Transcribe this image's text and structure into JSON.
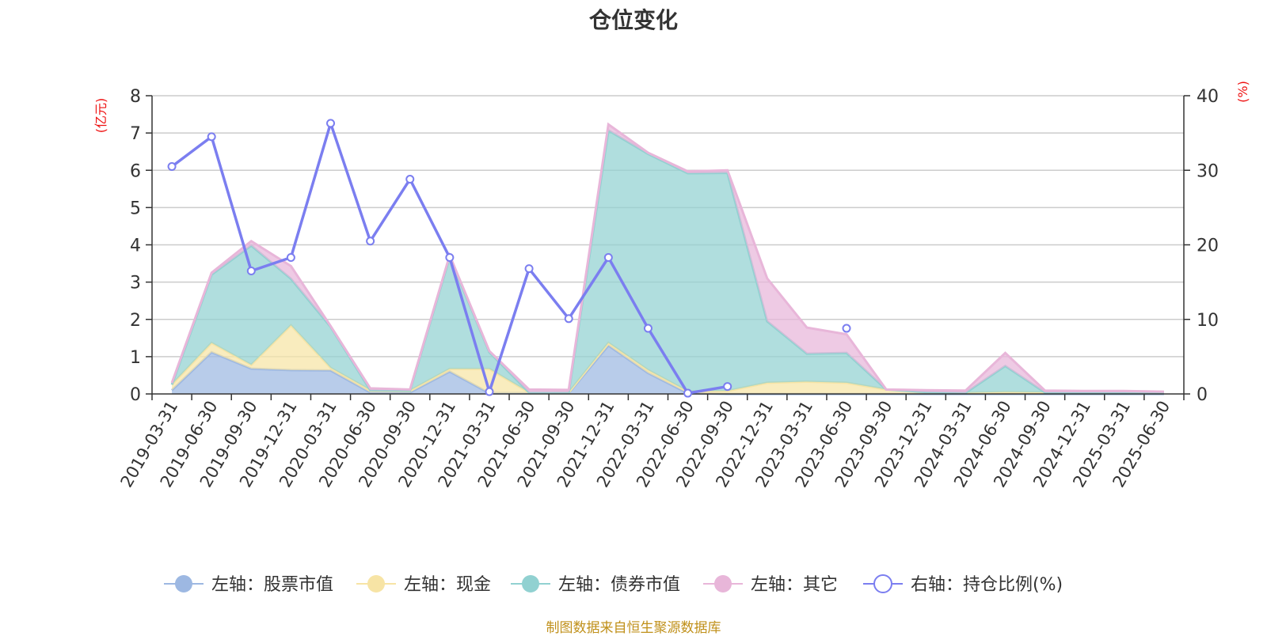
{
  "chart_data": {
    "type": "area",
    "title": "仓位变化",
    "left_axis_unit": "(亿元)",
    "right_axis_unit": "(%)",
    "categories": [
      "2019-03-31",
      "2019-06-30",
      "2019-09-30",
      "2019-12-31",
      "2020-03-31",
      "2020-06-30",
      "2020-09-30",
      "2020-12-31",
      "2021-03-31",
      "2021-06-30",
      "2021-09-30",
      "2021-12-31",
      "2022-03-31",
      "2022-06-30",
      "2022-09-30",
      "2022-12-31",
      "2023-03-31",
      "2023-06-30",
      "2023-09-30",
      "2023-12-31",
      "2024-03-31",
      "2024-06-30",
      "2024-09-30",
      "2024-12-31",
      "2025-03-31",
      "2025-06-30"
    ],
    "ylim_left": [
      0,
      8
    ],
    "yticks_left": [
      0,
      1,
      2,
      3,
      4,
      5,
      6,
      7,
      8
    ],
    "ylim_right": [
      0,
      40
    ],
    "yticks_right": [
      0,
      10,
      20,
      30,
      40
    ],
    "grid": true,
    "legend_position": "bottom",
    "series": [
      {
        "name": "左轴：股票市值",
        "axis": "left",
        "kind": "area",
        "color": "#9db8e2",
        "values": [
          0.1,
          1.12,
          0.68,
          0.64,
          0.63,
          0.04,
          0.04,
          0.6,
          0.02,
          0.02,
          0.02,
          1.3,
          0.56,
          0.02,
          0.0,
          0.0,
          0.0,
          0.0,
          0.0,
          0.0,
          0.0,
          0.0,
          0.0,
          0.0,
          0.0,
          0.0
        ]
      },
      {
        "name": "左轴：现金",
        "axis": "left",
        "kind": "area",
        "color": "#f7e4a5",
        "values": [
          0.15,
          0.25,
          0.1,
          1.2,
          0.07,
          0.06,
          0.05,
          0.07,
          0.65,
          0.02,
          0.02,
          0.07,
          0.08,
          0.05,
          0.08,
          0.3,
          0.33,
          0.3,
          0.12,
          0.05,
          0.03,
          0.05,
          0.04,
          0.04,
          0.04,
          0.03
        ]
      },
      {
        "name": "左轴：债券市值",
        "axis": "left",
        "kind": "area",
        "color": "#91d1d1",
        "values": [
          0.0,
          1.83,
          3.2,
          1.25,
          1.1,
          0.0,
          0.0,
          3.0,
          0.45,
          0.0,
          0.0,
          5.7,
          5.8,
          5.85,
          5.85,
          1.65,
          0.75,
          0.8,
          0.0,
          0.0,
          0.0,
          0.7,
          0.0,
          0.0,
          0.0,
          0.0
        ]
      },
      {
        "name": "左轴：其它",
        "axis": "left",
        "kind": "area",
        "color": "#e8b6d9",
        "values": [
          0.05,
          0.05,
          0.12,
          0.34,
          0.02,
          0.05,
          0.03,
          0.05,
          0.03,
          0.08,
          0.07,
          0.16,
          0.03,
          0.05,
          0.07,
          1.15,
          0.7,
          0.5,
          0.0,
          0.05,
          0.06,
          0.35,
          0.05,
          0.04,
          0.04,
          0.03
        ]
      },
      {
        "name": "右轴：持仓比例(%)",
        "axis": "right",
        "kind": "line",
        "color": "#7b7ef0",
        "values": [
          30.5,
          34.5,
          16.5,
          18.3,
          36.3,
          20.5,
          28.8,
          18.3,
          0.3,
          16.8,
          10.1,
          18.3,
          8.8,
          0.1,
          1.0,
          null,
          null,
          8.8,
          null,
          null,
          null,
          null,
          null,
          null,
          null,
          null
        ]
      }
    ]
  },
  "source_note": "制图数据来自恒生聚源数据库"
}
